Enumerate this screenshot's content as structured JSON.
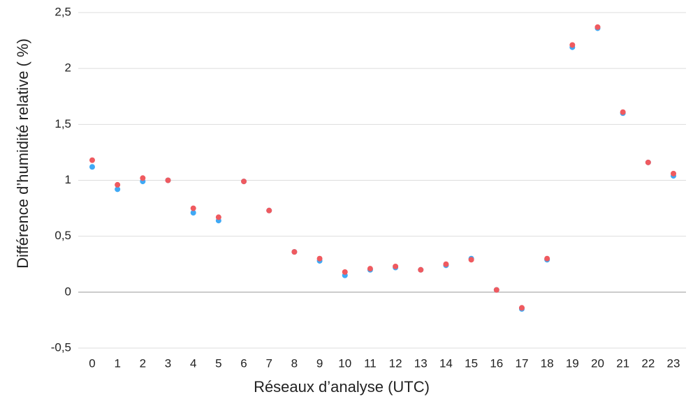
{
  "chart_data": {
    "type": "line",
    "x_label": "Réseaux d’analyse (UTC)",
    "y_label": "Différence d’humidité relative ( %)",
    "categories": [
      "0",
      "1",
      "2",
      "3",
      "4",
      "5",
      "6",
      "7",
      "8",
      "9",
      "10",
      "11",
      "12",
      "13",
      "14",
      "15",
      "16",
      "17",
      "18",
      "19",
      "20",
      "21",
      "22",
      "23"
    ],
    "series": [
      {
        "color": "#3fa9f5",
        "values": [
          1.12,
          0.92,
          0.99,
          1.0,
          0.71,
          0.64,
          0.99,
          0.73,
          0.36,
          0.28,
          0.15,
          0.2,
          0.22,
          0.2,
          0.24,
          0.3,
          0.02,
          -0.15,
          0.29,
          2.19,
          2.36,
          1.6,
          1.16,
          1.04
        ]
      },
      {
        "color": "#ef5a5f",
        "values": [
          1.18,
          0.96,
          1.02,
          1.0,
          0.75,
          0.67,
          0.99,
          0.73,
          0.36,
          0.3,
          0.18,
          0.21,
          0.23,
          0.2,
          0.25,
          0.29,
          0.02,
          -0.14,
          0.3,
          2.21,
          2.37,
          1.61,
          1.16,
          1.06
        ]
      }
    ],
    "ylim": [
      -0.5,
      2.5
    ],
    "yticks": [
      {
        "value": -0.5,
        "label": "-0,5"
      },
      0,
      {
        "value": 0.5,
        "label": "0,5"
      },
      1,
      {
        "value": 1.5,
        "label": "1,5"
      },
      2,
      {
        "value": 2.5,
        "label": "2,5"
      }
    ],
    "grid": true
  }
}
